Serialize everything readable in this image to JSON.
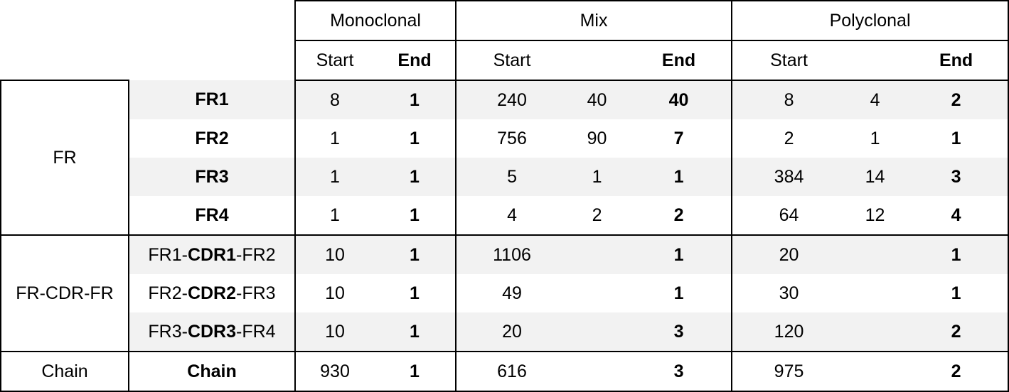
{
  "header": {
    "groups": [
      "Monoclonal",
      "Mix",
      "Polyclonal"
    ],
    "start_label": "Start",
    "end_label": "End"
  },
  "fr_group": {
    "label": "FR",
    "rows": [
      {
        "label": "FR1",
        "mono_start": "8",
        "mono_end": "1",
        "mix_start": "240",
        "mix_mid": "40",
        "mix_end": "40",
        "poly_start": "8",
        "poly_mid": "4",
        "poly_end": "2"
      },
      {
        "label": "FR2",
        "mono_start": "1",
        "mono_end": "1",
        "mix_start": "756",
        "mix_mid": "90",
        "mix_end": "7",
        "poly_start": "2",
        "poly_mid": "1",
        "poly_end": "1"
      },
      {
        "label": "FR3",
        "mono_start": "1",
        "mono_end": "1",
        "mix_start": "5",
        "mix_mid": "1",
        "mix_end": "1",
        "poly_start": "384",
        "poly_mid": "14",
        "poly_end": "3"
      },
      {
        "label": "FR4",
        "mono_start": "1",
        "mono_end": "1",
        "mix_start": "4",
        "mix_mid": "2",
        "mix_end": "2",
        "poly_start": "64",
        "poly_mid": "12",
        "poly_end": "4"
      }
    ]
  },
  "cdr_group": {
    "label": "FR-CDR-FR",
    "rows": [
      {
        "pre": "FR1-",
        "cdr": "CDR1",
        "post": "-FR2",
        "mono_start": "10",
        "mono_end": "1",
        "mix_start": "1106",
        "mix_end": "1",
        "poly_start": "20",
        "poly_end": "1"
      },
      {
        "pre": "FR2-",
        "cdr": "CDR2",
        "post": "-FR3",
        "mono_start": "10",
        "mono_end": "1",
        "mix_start": "49",
        "mix_end": "1",
        "poly_start": "30",
        "poly_end": "1"
      },
      {
        "pre": "FR3-",
        "cdr": "CDR3",
        "post": "-FR4",
        "mono_start": "10",
        "mono_end": "1",
        "mix_start": "20",
        "mix_end": "3",
        "poly_start": "120",
        "poly_end": "2"
      }
    ]
  },
  "chain_group": {
    "label": "Chain",
    "row": {
      "label": "Chain",
      "mono_start": "930",
      "mono_end": "1",
      "mix_start": "616",
      "mix_end": "3",
      "poly_start": "975",
      "poly_end": "2"
    }
  }
}
